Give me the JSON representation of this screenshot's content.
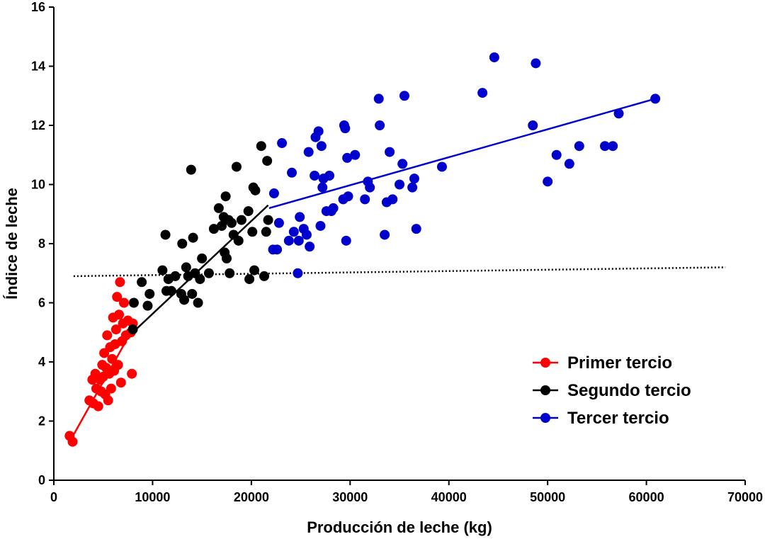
{
  "chart_data": {
    "type": "scatter",
    "title": "",
    "xlabel": "Producción de leche (kg)",
    "ylabel": "Índice de leche",
    "xlim": [
      0,
      70000
    ],
    "ylim": [
      0,
      16
    ],
    "x_ticks": [
      0,
      10000,
      20000,
      30000,
      40000,
      50000,
      60000,
      70000
    ],
    "y_ticks": [
      0,
      2,
      4,
      6,
      8,
      10,
      12,
      14,
      16
    ],
    "x_tick_labels": [
      "0",
      "10000",
      "20000",
      "30000",
      "40000",
      "50000",
      "60000",
      "70000"
    ],
    "y_tick_labels": [
      "0",
      "2",
      "4",
      "6",
      "8",
      "10",
      "12",
      "14",
      "16"
    ],
    "grid": false,
    "legend_position": "bottom-right",
    "reference_line": {
      "style": "dotted",
      "color": "#000000",
      "points": [
        [
          2000,
          6.9
        ],
        [
          68000,
          7.2
        ]
      ]
    },
    "series": [
      {
        "name": "Primer tercio",
        "color": "#ff0000",
        "fit_line": [
          [
            1600,
            1.3
          ],
          [
            8300,
            5.3
          ]
        ],
        "points": [
          [
            1600,
            1.5
          ],
          [
            1900,
            1.3
          ],
          [
            3600,
            2.7
          ],
          [
            3900,
            3.4
          ],
          [
            4000,
            2.6
          ],
          [
            4200,
            3.6
          ],
          [
            4300,
            3.1
          ],
          [
            4500,
            2.5
          ],
          [
            4700,
            3.4
          ],
          [
            4800,
            3.0
          ],
          [
            4900,
            3.9
          ],
          [
            5000,
            3.5
          ],
          [
            5100,
            4.3
          ],
          [
            5200,
            2.9
          ],
          [
            5300,
            3.8
          ],
          [
            5400,
            4.9
          ],
          [
            5500,
            2.7
          ],
          [
            5600,
            3.6
          ],
          [
            5700,
            4.5
          ],
          [
            5800,
            3.1
          ],
          [
            5900,
            4.1
          ],
          [
            6000,
            5.5
          ],
          [
            6100,
            3.7
          ],
          [
            6200,
            4.6
          ],
          [
            6300,
            5.1
          ],
          [
            6400,
            6.2
          ],
          [
            6500,
            3.9
          ],
          [
            6600,
            5.6
          ],
          [
            6700,
            6.7
          ],
          [
            6800,
            3.3
          ],
          [
            6900,
            4.7
          ],
          [
            7000,
            5.3
          ],
          [
            7100,
            6.0
          ],
          [
            7300,
            4.9
          ],
          [
            7500,
            5.4
          ],
          [
            7800,
            5.0
          ],
          [
            7900,
            3.6
          ],
          [
            8000,
            5.3
          ]
        ]
      },
      {
        "name": "Segundo tercio",
        "color": "#000000",
        "fit_line": [
          [
            8000,
            5.0
          ],
          [
            21700,
            9.3
          ]
        ],
        "points": [
          [
            8000,
            5.1
          ],
          [
            8100,
            6.0
          ],
          [
            8900,
            6.7
          ],
          [
            9500,
            5.9
          ],
          [
            9700,
            6.3
          ],
          [
            11000,
            7.1
          ],
          [
            11300,
            8.3
          ],
          [
            11400,
            6.4
          ],
          [
            11600,
            6.8
          ],
          [
            11900,
            6.4
          ],
          [
            12300,
            6.9
          ],
          [
            12900,
            6.3
          ],
          [
            13000,
            8.0
          ],
          [
            13200,
            6.1
          ],
          [
            13400,
            7.2
          ],
          [
            13600,
            6.9
          ],
          [
            13900,
            10.5
          ],
          [
            14000,
            6.3
          ],
          [
            14100,
            8.2
          ],
          [
            14300,
            7.0
          ],
          [
            14600,
            6.0
          ],
          [
            14800,
            6.8
          ],
          [
            15000,
            7.5
          ],
          [
            15700,
            7.0
          ],
          [
            16200,
            8.5
          ],
          [
            16700,
            9.2
          ],
          [
            17000,
            8.6
          ],
          [
            17200,
            8.9
          ],
          [
            17300,
            7.7
          ],
          [
            17400,
            9.6
          ],
          [
            17500,
            7.5
          ],
          [
            17700,
            8.8
          ],
          [
            17800,
            7.0
          ],
          [
            18000,
            8.7
          ],
          [
            18200,
            8.3
          ],
          [
            18500,
            10.6
          ],
          [
            18700,
            8.1
          ],
          [
            19000,
            8.8
          ],
          [
            19700,
            9.1
          ],
          [
            19800,
            6.8
          ],
          [
            20100,
            8.4
          ],
          [
            20200,
            9.9
          ],
          [
            20300,
            7.1
          ],
          [
            20400,
            9.8
          ],
          [
            21000,
            11.3
          ],
          [
            21300,
            6.9
          ],
          [
            21500,
            8.4
          ],
          [
            21600,
            10.8
          ],
          [
            21700,
            8.8
          ]
        ]
      },
      {
        "name": "Tercer tercio",
        "color": "#0000cc",
        "fit_line": [
          [
            21800,
            9.2
          ],
          [
            60900,
            12.9
          ]
        ],
        "points": [
          [
            22200,
            7.8
          ],
          [
            22300,
            9.7
          ],
          [
            22600,
            7.8
          ],
          [
            22800,
            8.7
          ],
          [
            23100,
            11.4
          ],
          [
            23800,
            8.1
          ],
          [
            24100,
            10.4
          ],
          [
            24300,
            8.4
          ],
          [
            24700,
            7.0
          ],
          [
            24800,
            8.1
          ],
          [
            24900,
            8.9
          ],
          [
            25300,
            8.5
          ],
          [
            25600,
            8.3
          ],
          [
            25800,
            11.1
          ],
          [
            25900,
            7.9
          ],
          [
            26400,
            10.3
          ],
          [
            26500,
            11.6
          ],
          [
            26800,
            11.8
          ],
          [
            27000,
            8.6
          ],
          [
            27100,
            11.3
          ],
          [
            27200,
            9.9
          ],
          [
            27300,
            10.2
          ],
          [
            27600,
            9.1
          ],
          [
            27900,
            10.3
          ],
          [
            28100,
            9.1
          ],
          [
            28300,
            9.2
          ],
          [
            29300,
            9.5
          ],
          [
            29400,
            12.0
          ],
          [
            29500,
            11.9
          ],
          [
            29600,
            8.1
          ],
          [
            29800,
            9.6
          ],
          [
            29700,
            10.9
          ],
          [
            30500,
            11.0
          ],
          [
            31500,
            9.5
          ],
          [
            31800,
            10.1
          ],
          [
            32000,
            9.9
          ],
          [
            32900,
            12.9
          ],
          [
            33000,
            12.0
          ],
          [
            33500,
            8.3
          ],
          [
            33700,
            9.4
          ],
          [
            34000,
            11.1
          ],
          [
            34300,
            9.5
          ],
          [
            35000,
            10.0
          ],
          [
            35300,
            10.7
          ],
          [
            35500,
            13.0
          ],
          [
            36300,
            9.9
          ],
          [
            36500,
            10.2
          ],
          [
            36700,
            8.5
          ],
          [
            39300,
            10.6
          ],
          [
            43400,
            13.1
          ],
          [
            44600,
            14.3
          ],
          [
            48500,
            12.0
          ],
          [
            48800,
            14.1
          ],
          [
            50000,
            10.1
          ],
          [
            50900,
            11.0
          ],
          [
            52200,
            10.7
          ],
          [
            53200,
            11.3
          ],
          [
            55800,
            11.3
          ],
          [
            56600,
            11.3
          ],
          [
            57200,
            12.4
          ],
          [
            60900,
            12.9
          ]
        ]
      }
    ]
  }
}
